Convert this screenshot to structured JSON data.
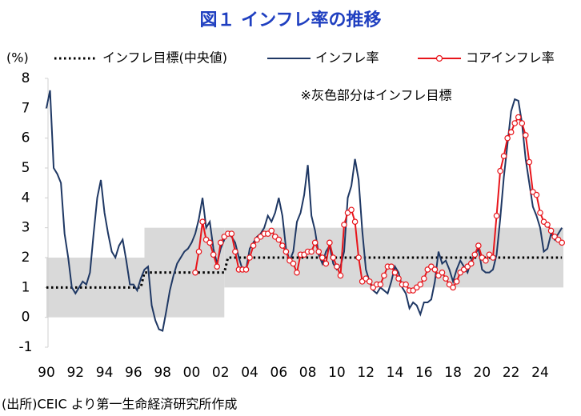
{
  "chart_data": {
    "type": "line",
    "title": "図１ インフレ率の推移",
    "y_label": "(%)",
    "annotation": "※灰色部分はインフレ目標",
    "source": "(出所)CEIC より第一生命経済研究所作成",
    "xlim": [
      1990,
      2025.6
    ],
    "ylim": [
      -1,
      8
    ],
    "yticks": [
      -1,
      0,
      1,
      2,
      3,
      4,
      5,
      6,
      7,
      8
    ],
    "xticks": [
      {
        "value": 1990,
        "label": "90"
      },
      {
        "value": 1992,
        "label": "92"
      },
      {
        "value": 1994,
        "label": "94"
      },
      {
        "value": 1996,
        "label": "96"
      },
      {
        "value": 1998,
        "label": "98"
      },
      {
        "value": 2000,
        "label": "00"
      },
      {
        "value": 2002,
        "label": "02"
      },
      {
        "value": 2004,
        "label": "04"
      },
      {
        "value": 2006,
        "label": "06"
      },
      {
        "value": 2008,
        "label": "08"
      },
      {
        "value": 2010,
        "label": "10"
      },
      {
        "value": 2012,
        "label": "12"
      },
      {
        "value": 2014,
        "label": "14"
      },
      {
        "value": 2016,
        "label": "16"
      },
      {
        "value": 2018,
        "label": "18"
      },
      {
        "value": 2020,
        "label": "20"
      },
      {
        "value": 2022,
        "label": "22"
      },
      {
        "value": 2024,
        "label": "24"
      }
    ],
    "band_color": "#d9d9d9",
    "target_range": [
      {
        "from": 1990,
        "to": 1996.75,
        "lower": 0,
        "upper": 2
      },
      {
        "from": 1996.75,
        "to": 2002.25,
        "lower": 0,
        "upper": 3
      },
      {
        "from": 2002.25,
        "to": 2025.6,
        "lower": 1,
        "upper": 3
      }
    ],
    "x": [
      1990,
      1990.25,
      1990.5,
      1990.75,
      1991,
      1991.25,
      1991.5,
      1991.75,
      1992,
      1992.25,
      1992.5,
      1992.75,
      1993,
      1993.25,
      1993.5,
      1993.75,
      1994,
      1994.25,
      1994.5,
      1994.75,
      1995,
      1995.25,
      1995.5,
      1995.75,
      1996,
      1996.25,
      1996.5,
      1996.75,
      1997,
      1997.25,
      1997.5,
      1997.75,
      1998,
      1998.25,
      1998.5,
      1998.75,
      1999,
      1999.25,
      1999.5,
      1999.75,
      2000,
      2000.25,
      2000.5,
      2000.75,
      2001,
      2001.25,
      2001.5,
      2001.75,
      2002,
      2002.25,
      2002.5,
      2002.75,
      2003,
      2003.25,
      2003.5,
      2003.75,
      2004,
      2004.25,
      2004.5,
      2004.75,
      2005,
      2005.25,
      2005.5,
      2005.75,
      2006,
      2006.25,
      2006.5,
      2006.75,
      2007,
      2007.25,
      2007.5,
      2007.75,
      2008,
      2008.25,
      2008.5,
      2008.75,
      2009,
      2009.25,
      2009.5,
      2009.75,
      2010,
      2010.25,
      2010.5,
      2010.75,
      2011,
      2011.25,
      2011.5,
      2011.75,
      2012,
      2012.25,
      2012.5,
      2012.75,
      2013,
      2013.25,
      2013.5,
      2013.75,
      2014,
      2014.25,
      2014.5,
      2014.75,
      2015,
      2015.25,
      2015.5,
      2015.75,
      2016,
      2016.25,
      2016.5,
      2016.75,
      2017,
      2017.25,
      2017.5,
      2017.75,
      2018,
      2018.25,
      2018.5,
      2018.75,
      2019,
      2019.25,
      2019.5,
      2019.75,
      2020,
      2020.25,
      2020.5,
      2020.75,
      2021,
      2021.25,
      2021.5,
      2021.75,
      2022,
      2022.25,
      2022.5,
      2022.75,
      2023,
      2023.25,
      2023.5,
      2023.75,
      2024,
      2024.25,
      2024.5,
      2024.75,
      2025,
      2025.25,
      2025.5
    ],
    "series": [
      {
        "name": "インフレ目標(中央値)",
        "color": "#000000",
        "style": "dotted",
        "values": [
          1,
          1,
          1,
          1,
          1,
          1,
          1,
          1,
          1,
          1,
          1,
          1,
          1,
          1,
          1,
          1,
          1,
          1,
          1,
          1,
          1,
          1,
          1,
          1,
          1,
          1,
          1,
          1.5,
          1.5,
          1.5,
          1.5,
          1.5,
          1.5,
          1.5,
          1.5,
          1.5,
          1.5,
          1.5,
          1.5,
          1.5,
          1.5,
          1.5,
          1.5,
          1.5,
          1.5,
          1.5,
          1.5,
          1.5,
          1.5,
          1.5,
          2,
          2,
          2,
          2,
          2,
          2,
          2,
          2,
          2,
          2,
          2,
          2,
          2,
          2,
          2,
          2,
          2,
          2,
          2,
          2,
          2,
          2,
          2,
          2,
          2,
          2,
          2,
          2,
          2,
          2,
          2,
          2,
          2,
          2,
          2,
          2,
          2,
          2,
          2,
          2,
          2,
          2,
          2,
          2,
          2,
          2,
          2,
          2,
          2,
          2,
          2,
          2,
          2,
          2,
          2,
          2,
          2,
          2,
          2,
          2,
          2,
          2,
          2,
          2,
          2,
          2,
          2,
          2,
          2,
          2,
          2,
          2,
          2,
          2,
          2,
          2,
          2,
          2,
          2,
          2,
          2,
          2,
          2,
          2,
          2,
          2,
          2,
          2,
          2,
          2,
          2,
          2,
          2
        ]
      },
      {
        "name": "インフレ率",
        "color": "#1f3864",
        "style": "solid",
        "values": [
          7.0,
          7.6,
          5.0,
          4.8,
          4.5,
          2.8,
          2.0,
          1.0,
          0.8,
          1.0,
          1.2,
          1.1,
          1.5,
          2.8,
          4.0,
          4.6,
          3.5,
          2.8,
          2.2,
          2.0,
          2.4,
          2.6,
          1.9,
          1.1,
          1.1,
          0.9,
          1.3,
          1.6,
          1.7,
          0.4,
          -0.1,
          -0.4,
          -0.45,
          0.2,
          0.9,
          1.4,
          1.8,
          2.0,
          2.2,
          2.3,
          2.5,
          2.8,
          3.3,
          4.0,
          3.0,
          3.2,
          2.3,
          1.8,
          2.3,
          2.6,
          2.8,
          2.7,
          2.5,
          2.0,
          1.6,
          1.6,
          2.3,
          2.5,
          2.7,
          2.8,
          3.0,
          3.4,
          3.2,
          3.5,
          4.0,
          3.4,
          2.3,
          1.9,
          2.2,
          3.2,
          3.5,
          4.1,
          5.1,
          3.4,
          2.9,
          2.1,
          1.8,
          2.2,
          2.4,
          1.8,
          1.6,
          1.7,
          2.2,
          4.0,
          4.4,
          5.3,
          4.6,
          2.9,
          1.6,
          1.2,
          0.9,
          0.8,
          1.0,
          0.9,
          0.8,
          1.2,
          1.7,
          1.5,
          1.0,
          0.8,
          0.3,
          0.5,
          0.4,
          0.1,
          0.5,
          0.5,
          0.6,
          1.2,
          2.2,
          1.8,
          1.9,
          1.6,
          1.2,
          1.6,
          1.9,
          1.7,
          1.5,
          1.9,
          2.1,
          2.3,
          1.6,
          1.5,
          1.5,
          1.6,
          2.1,
          3.3,
          4.7,
          5.8,
          6.9,
          7.3,
          7.25,
          6.5,
          5.3,
          4.5,
          3.7,
          3.4,
          3.0,
          2.2,
          2.3,
          2.8,
          2.6,
          2.8,
          3.0
        ]
      },
      {
        "name": "コアインフレ率",
        "color": "#e8151b",
        "style": "solid",
        "marker": "circle",
        "values": [
          null,
          null,
          null,
          null,
          null,
          null,
          null,
          null,
          null,
          null,
          null,
          null,
          null,
          null,
          null,
          null,
          null,
          null,
          null,
          null,
          null,
          null,
          null,
          null,
          null,
          null,
          null,
          null,
          null,
          null,
          null,
          null,
          null,
          null,
          null,
          null,
          null,
          null,
          null,
          null,
          null,
          1.5,
          2.2,
          3.2,
          2.6,
          2.5,
          2.1,
          1.7,
          2.5,
          2.7,
          2.8,
          2.8,
          2.2,
          1.6,
          1.6,
          1.6,
          2.0,
          2.4,
          2.6,
          2.7,
          2.8,
          2.8,
          2.9,
          2.7,
          2.6,
          2.4,
          2.2,
          1.9,
          1.8,
          1.5,
          2.1,
          2.1,
          2.2,
          2.2,
          2.5,
          2.2,
          2.0,
          1.8,
          2.5,
          2.0,
          1.7,
          1.4,
          3.1,
          3.5,
          3.6,
          3.2,
          2.0,
          1.2,
          1.3,
          1.2,
          1.0,
          1.1,
          1.1,
          1.4,
          1.7,
          1.7,
          1.5,
          1.3,
          1.1,
          1.1,
          0.9,
          0.9,
          1.0,
          1.1,
          1.3,
          1.6,
          1.7,
          1.6,
          1.4,
          1.5,
          1.3,
          1.1,
          1.0,
          1.2,
          1.5,
          1.6,
          1.7,
          1.8,
          2.1,
          2.4,
          2.0,
          1.9,
          2.1,
          2.0,
          3.4,
          4.9,
          5.4,
          6.0,
          6.2,
          6.5,
          6.7,
          6.5,
          6.1,
          5.2,
          4.2,
          4.1,
          3.5,
          3.2,
          3.1,
          2.9,
          2.7,
          2.6,
          2.5
        ]
      }
    ]
  }
}
